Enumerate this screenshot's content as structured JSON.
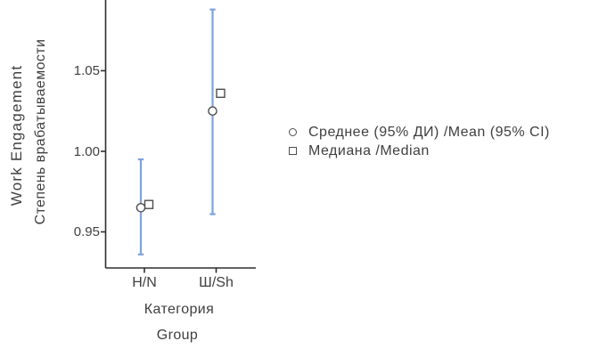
{
  "chart_data": {
    "type": "errorbar",
    "title": "",
    "ylabel_lines": [
      "Work Engagement",
      "Степень врабатываемости"
    ],
    "xlabel_lines": [
      "Категория",
      "Group"
    ],
    "categories": [
      "Н/N",
      "Ш/Sh"
    ],
    "ytick_labels": [
      "1.05",
      "1.00",
      "0.95"
    ],
    "yticks": [
      1.05,
      1.0,
      0.95
    ],
    "ylim": [
      0.9276,
      1.0939
    ],
    "grid": "off",
    "legend_position": "right",
    "series": [
      {
        "name": "Среднее (95% ДИ) /Mean (95% CI)",
        "marker": "circle",
        "values": [
          0.965,
          1.025
        ],
        "ci_low": [
          0.936,
          0.961
        ],
        "ci_high": [
          0.995,
          1.088
        ]
      },
      {
        "name": "Медиана /Median",
        "marker": "square",
        "values": [
          0.967,
          1.036
        ]
      }
    ],
    "colors": {
      "errorbar": "#7EA2E0",
      "marker_stroke": "#4D4D4D",
      "marker_fill": "#FFFFFF",
      "axis": "#2E2E2E",
      "text": "#3F3F3F",
      "background": "#FFFFFF"
    }
  }
}
